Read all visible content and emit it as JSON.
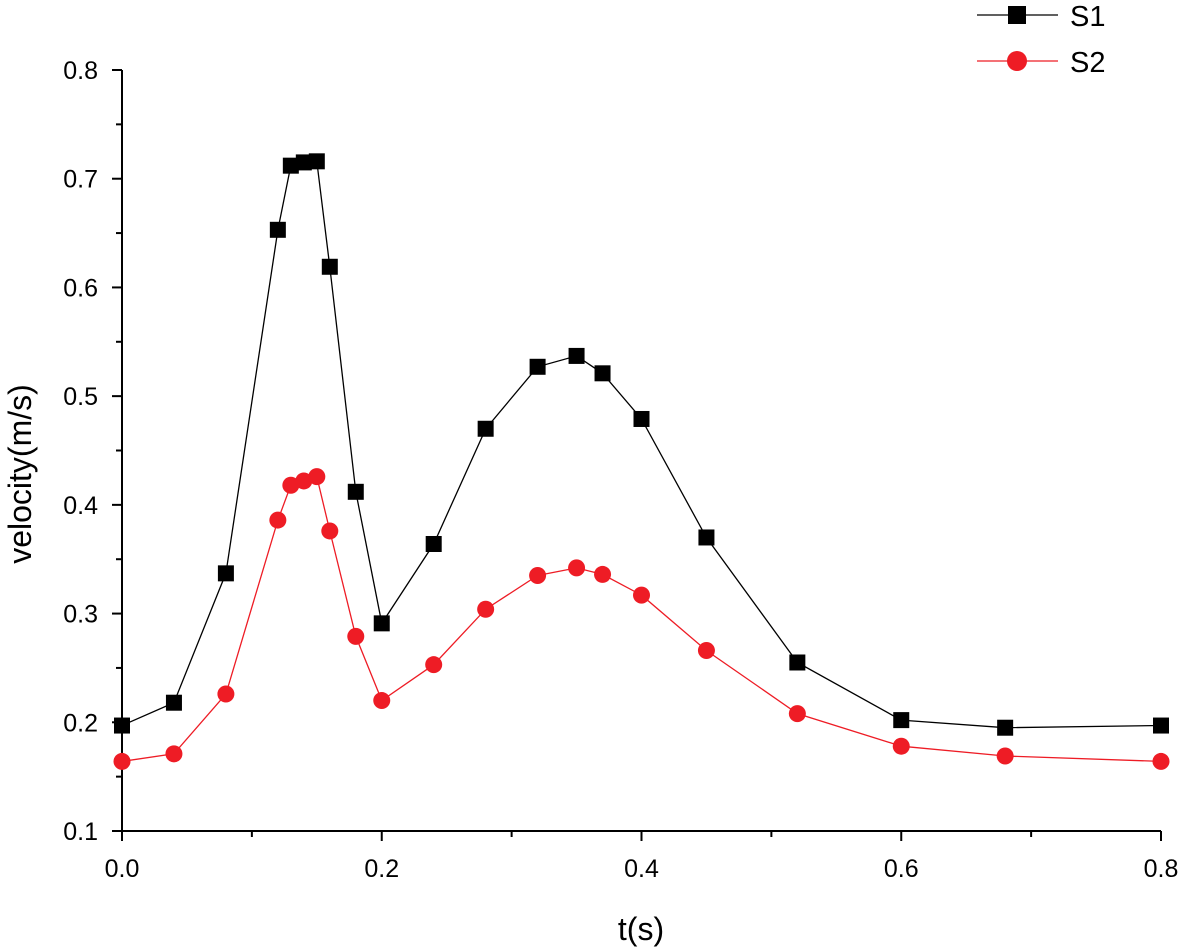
{
  "chart_data": {
    "type": "line",
    "title": "",
    "xlabel": "t(s)",
    "ylabel": "velocity(m/s)",
    "xlim": [
      0.0,
      0.8
    ],
    "ylim": [
      0.1,
      0.8
    ],
    "xticks": [
      "0.0",
      "0.2",
      "0.4",
      "0.6",
      "0.8"
    ],
    "yticks": [
      "0.1",
      "0.2",
      "0.3",
      "0.4",
      "0.5",
      "0.6",
      "0.7",
      "0.8"
    ],
    "grid": false,
    "legend_position": "top-right",
    "x": [
      0.0,
      0.04,
      0.08,
      0.12,
      0.13,
      0.14,
      0.15,
      0.16,
      0.18,
      0.2,
      0.24,
      0.28,
      0.32,
      0.35,
      0.37,
      0.4,
      0.45,
      0.52,
      0.6,
      0.68,
      0.8
    ],
    "series": [
      {
        "name": "S1",
        "color": "#000000",
        "marker": "square",
        "values": [
          0.197,
          0.218,
          0.337,
          0.653,
          0.712,
          0.715,
          0.716,
          0.619,
          0.412,
          0.291,
          0.364,
          0.47,
          0.527,
          0.537,
          0.521,
          0.479,
          0.37,
          0.255,
          0.202,
          0.195,
          0.197
        ]
      },
      {
        "name": "S2",
        "color": "#ee1c25",
        "marker": "circle",
        "values": [
          0.164,
          0.171,
          0.226,
          0.386,
          0.418,
          0.422,
          0.426,
          0.376,
          0.279,
          0.22,
          0.253,
          0.304,
          0.335,
          0.342,
          0.336,
          0.317,
          0.266,
          0.208,
          0.178,
          0.169,
          0.164
        ]
      }
    ]
  }
}
